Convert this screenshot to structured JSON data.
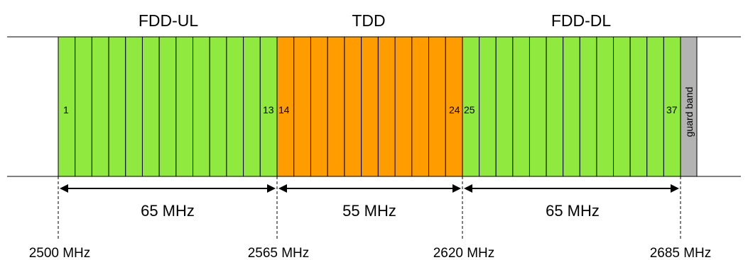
{
  "colors": {
    "fdd": "#8fe93f",
    "tdd": "#ff9d00",
    "guard": "#b3b3b3",
    "line": "#000000"
  },
  "bands": [
    {
      "title": "FDD-UL",
      "first_channel": "1",
      "last_channel": "13",
      "width_label": "65 MHz",
      "type": "fdd"
    },
    {
      "title": "TDD",
      "first_channel": "14",
      "last_channel": "24",
      "width_label": "55 MHz",
      "type": "tdd"
    },
    {
      "title": "FDD-DL",
      "first_channel": "25",
      "last_channel": "37",
      "width_label": "65 MHz",
      "type": "fdd"
    }
  ],
  "channel_counts": [
    13,
    11,
    13
  ],
  "guard_band": {
    "label": "guard band"
  },
  "frequencies": [
    "2500 MHz",
    "2565 MHz",
    "2620 MHz",
    "2685 MHz"
  ]
}
